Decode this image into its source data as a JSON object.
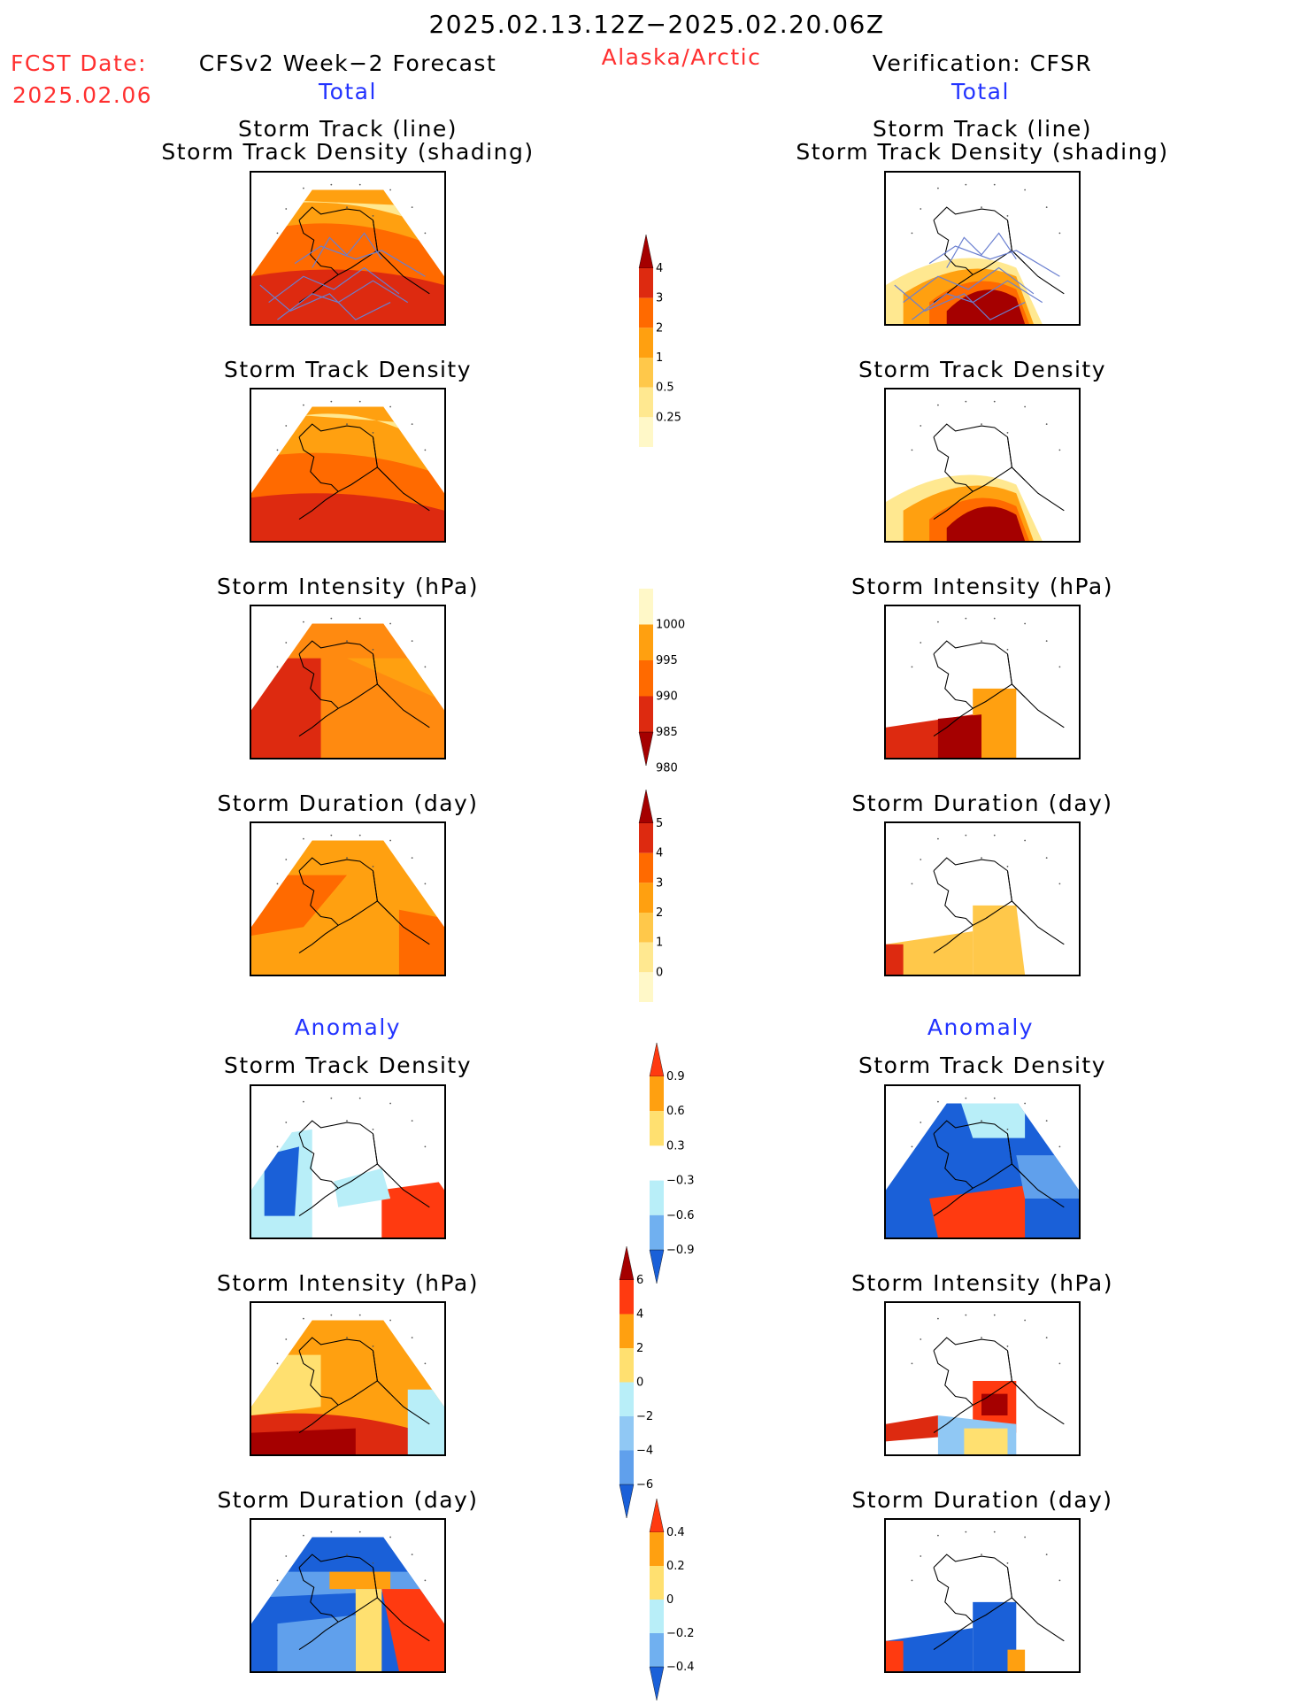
{
  "header": {
    "period": "2025.02.13.12Z−2025.02.20.06Z",
    "region": "Alaska/Arctic",
    "fcst_label": "FCST Date:",
    "fcst_date": "2025.02.06",
    "forecast_title": "CFSv2 Week−2 Forecast",
    "verification_title": "Verification: CFSR",
    "total_left": "Total",
    "total_right": "Total"
  },
  "sections": {
    "anomaly_left": "Anomaly",
    "anomaly_right": "Anomaly"
  },
  "panels": {
    "left": [
      {
        "title_line1": "Storm Track (line)",
        "title_line2": "Storm Track Density (shading)"
      },
      {
        "title_line1": "Storm Track Density"
      },
      {
        "title_line1": "Storm Intensity (hPa)"
      },
      {
        "title_line1": "Storm Duration (day)"
      },
      {
        "title_line1": "Storm Track Density"
      },
      {
        "title_line1": "Storm Intensity (hPa)"
      },
      {
        "title_line1": "Storm Duration (day)"
      }
    ],
    "right": [
      {
        "title_line1": "Storm Track (line)",
        "title_line2": "Storm Track Density (shading)"
      },
      {
        "title_line1": "Storm Track Density"
      },
      {
        "title_line1": "Storm Intensity (hPa)"
      },
      {
        "title_line1": "Storm Duration (day)"
      },
      {
        "title_line1": "Storm Track Density"
      },
      {
        "title_line1": "Storm Intensity (hPa)"
      },
      {
        "title_line1": "Storm Duration (day)"
      }
    ]
  },
  "colorbars": [
    {
      "name": "density-total",
      "labels": [
        "4",
        "3",
        "2",
        "1",
        "0.5",
        "0.25"
      ],
      "colors": [
        "#a50000",
        "#dd2a10",
        "#ff6a00",
        "#ffa010",
        "#ffc84a",
        "#ffe890",
        "#fff8c8"
      ],
      "arrow_top": true,
      "arrow_bottom": false
    },
    {
      "name": "intensity-total",
      "labels": [
        "1000",
        "995",
        "990",
        "985",
        "980"
      ],
      "colors": [
        "#fff8c8",
        "#ffa010",
        "#ff6a00",
        "#dd2a10",
        "#a50000"
      ],
      "arrow_top": false,
      "arrow_bottom": true
    },
    {
      "name": "duration-total",
      "labels": [
        "5",
        "4",
        "3",
        "2",
        "1",
        "0"
      ],
      "colors": [
        "#a50000",
        "#dd2a10",
        "#ff6a00",
        "#ffa010",
        "#ffc84a",
        "#ffe890",
        "#fff8c8"
      ],
      "arrow_top": true,
      "arrow_bottom": false
    },
    {
      "name": "density-anomaly",
      "labels": [
        "0.9",
        "0.6",
        "0.3",
        "−0.3",
        "−0.6",
        "−0.9"
      ],
      "colors": [
        "#ff3a10",
        "#ffa010",
        "#ffe070",
        "#ffffff",
        "#b8eef8",
        "#70b0f0",
        "#1a60d8"
      ],
      "arrow_top": true,
      "arrow_bottom": true
    },
    {
      "name": "intensity-anomaly",
      "labels": [
        "6",
        "4",
        "2",
        "0",
        "−2",
        "−4",
        "−6"
      ],
      "colors": [
        "#a50000",
        "#ff3a10",
        "#ffa010",
        "#ffe070",
        "#b8eef8",
        "#90c8f4",
        "#60a0ec",
        "#1a60d8"
      ],
      "arrow_top": true,
      "arrow_bottom": true
    },
    {
      "name": "duration-anomaly",
      "labels": [
        "0.4",
        "0.2",
        "0",
        "−0.2",
        "−0.4"
      ],
      "colors": [
        "#ff3a10",
        "#ffa010",
        "#ffe070",
        "#b8eef8",
        "#70b0f0",
        "#1a60d8"
      ],
      "arrow_top": true,
      "arrow_bottom": true
    }
  ]
}
